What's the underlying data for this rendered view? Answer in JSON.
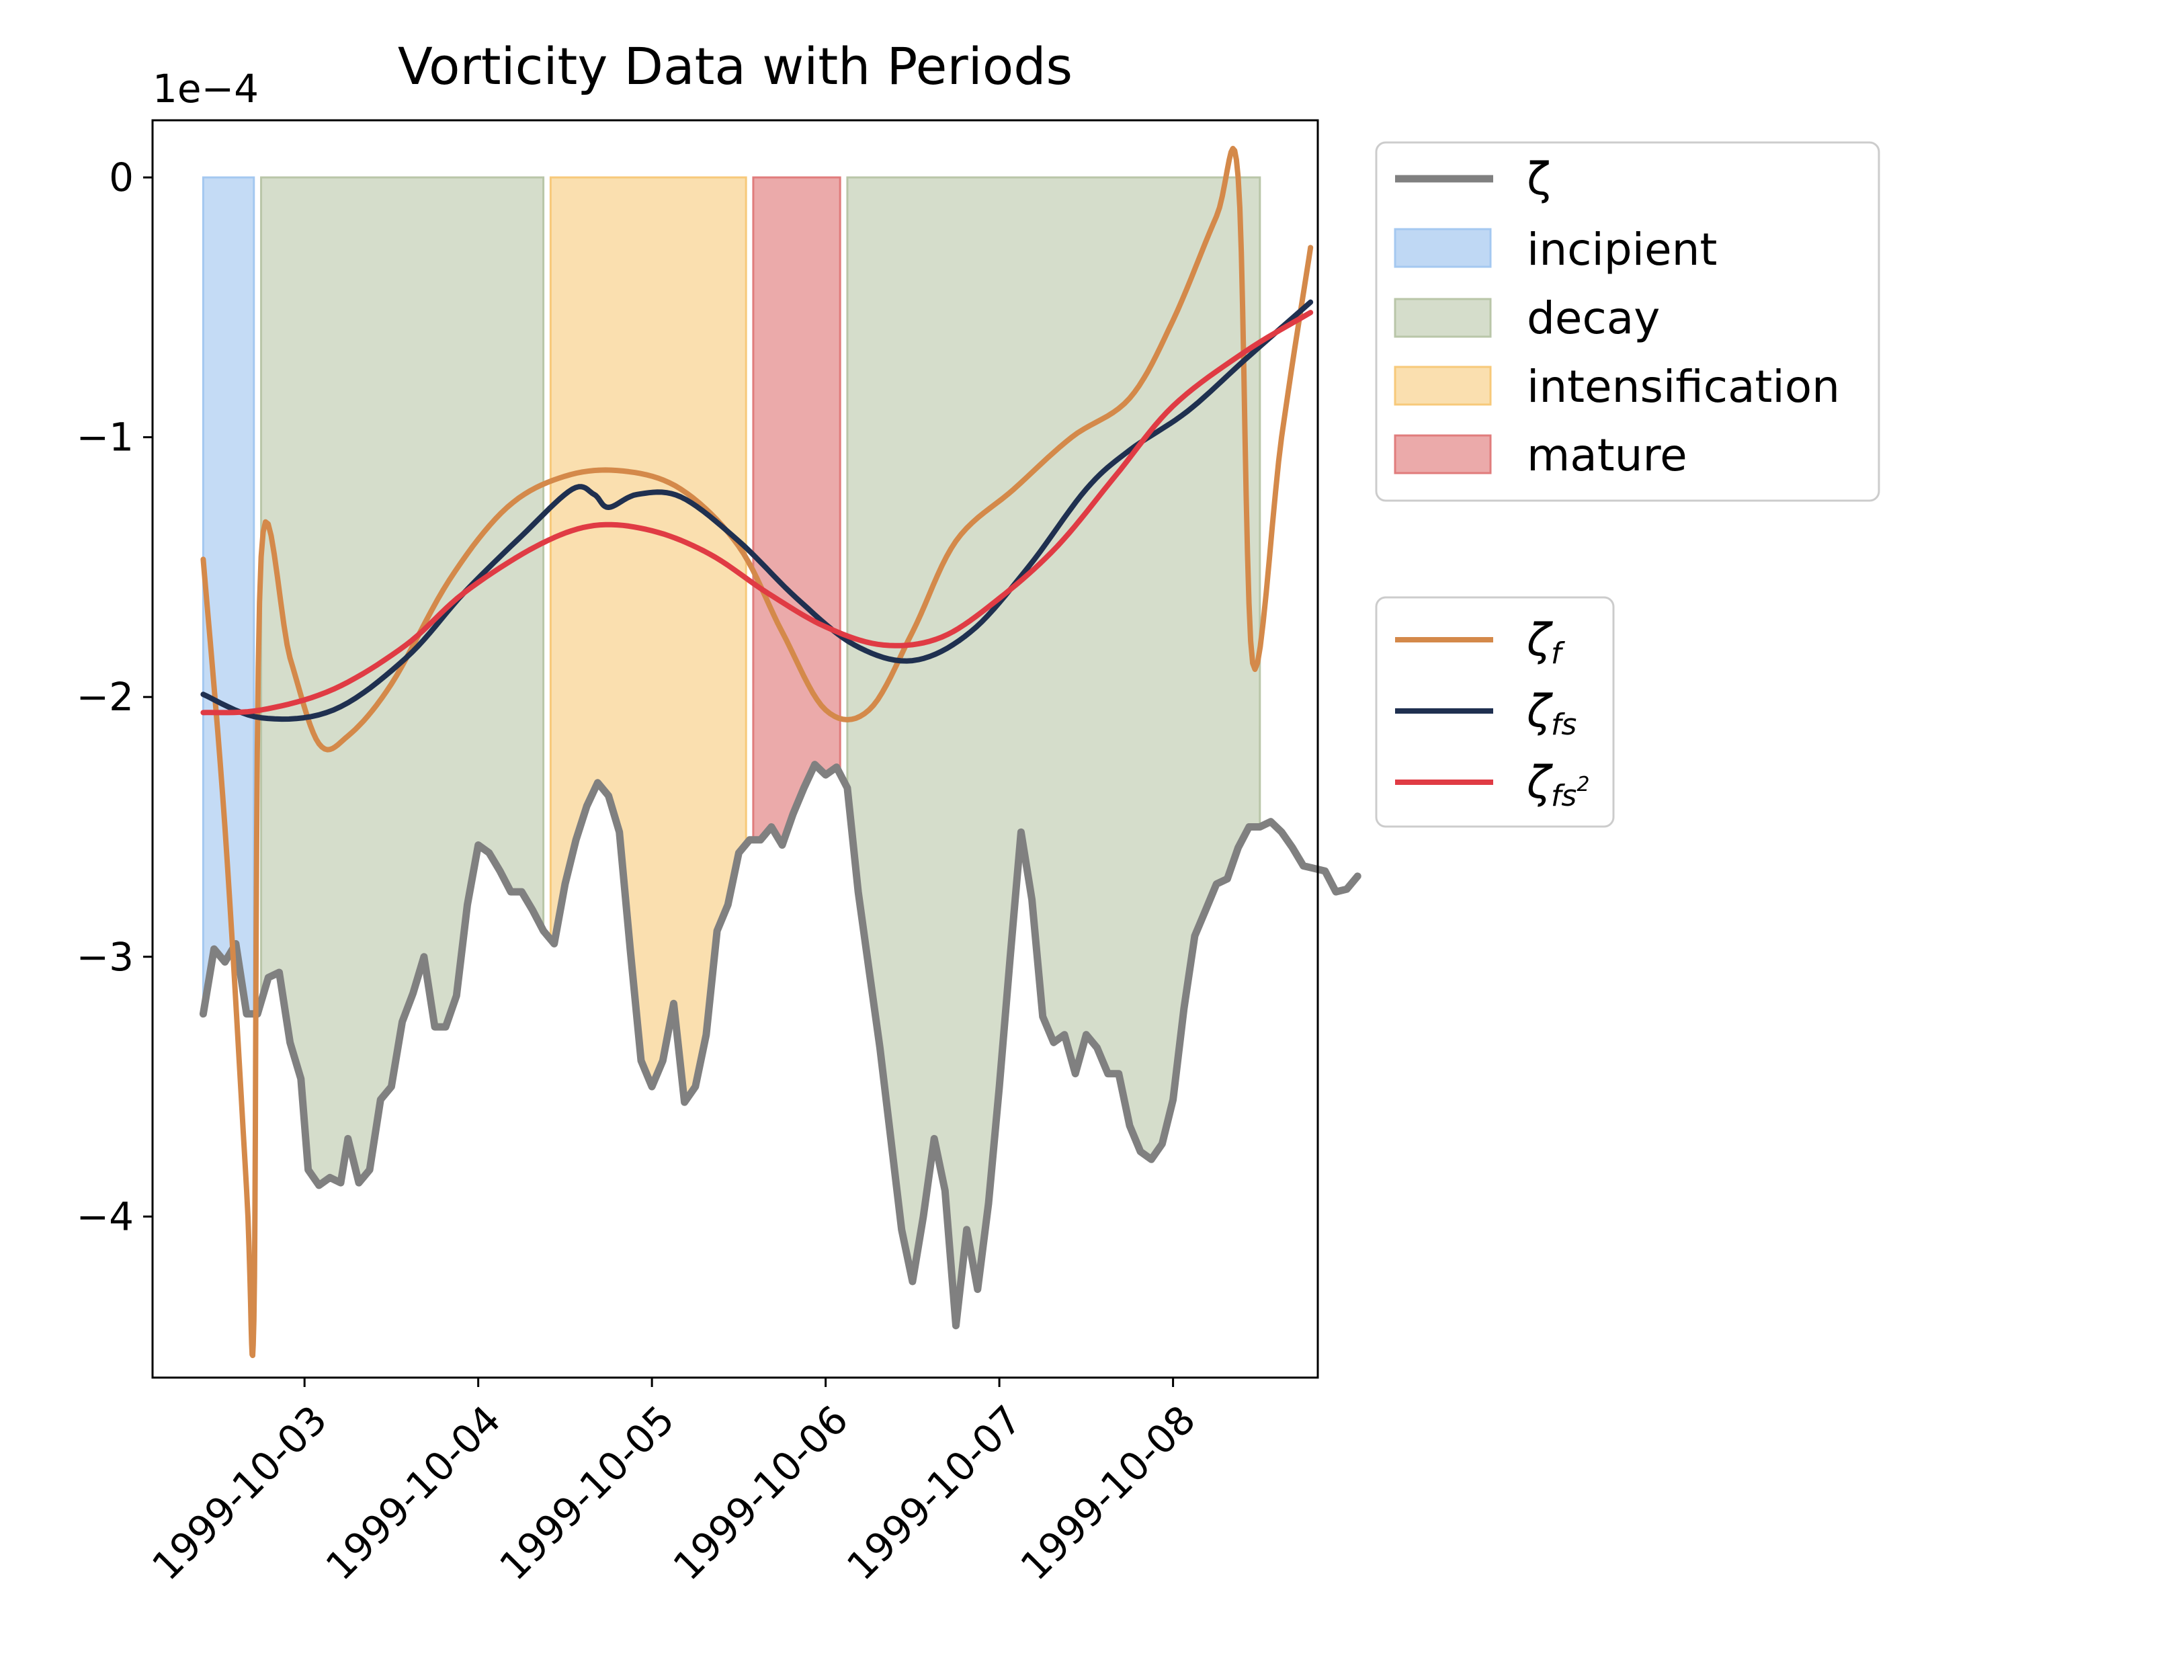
{
  "chart_data": {
    "type": "line",
    "title": "Vorticity Data with Periods",
    "xlabel": "",
    "ylabel": "",
    "y_scale_label": "1e−4",
    "y_scale_factor": 0.0001,
    "xlim": [
      "1999-10-02T03:00",
      "1999-10-08T20:00"
    ],
    "ylim": [
      -4.62,
      0.22
    ],
    "x_ticks": [
      "1999-10-03",
      "1999-10-04",
      "1999-10-05",
      "1999-10-06",
      "1999-10-07",
      "1999-10-08"
    ],
    "y_ticks": [
      0,
      -1,
      -2,
      -3,
      -4
    ],
    "y_tick_labels": [
      "0",
      "−1",
      "−2",
      "−3",
      "−4"
    ],
    "grid": false,
    "periods": [
      {
        "name": "incipient",
        "color": "#a4c8f0",
        "start": "1999-10-02T10:00",
        "end": "1999-10-02T17:00"
      },
      {
        "name": "decay",
        "color": "#b9c6a8",
        "start": "1999-10-02T18:00",
        "end": "1999-10-04T09:00"
      },
      {
        "name": "intensification",
        "color": "#f7c97a",
        "start": "1999-10-04T10:00",
        "end": "1999-10-05T13:00"
      },
      {
        "name": "mature",
        "color": "#e07c7c",
        "start": "1999-10-05T14:00",
        "end": "1999-10-06T02:00"
      },
      {
        "name": "decay",
        "color": "#b9c6a8",
        "start": "1999-10-06T03:00",
        "end": "1999-10-08T12:00"
      }
    ],
    "series": [
      {
        "name": "ζ",
        "color": "#808080",
        "points": [
          [
            "1999-10-02T10:00",
            -3.22
          ],
          [
            "1999-10-02T11:30",
            -2.97
          ],
          [
            "1999-10-02T13:00",
            -3.02
          ],
          [
            "1999-10-02T14:30",
            -2.95
          ],
          [
            "1999-10-02T16:00",
            -3.22
          ],
          [
            "1999-10-02T17:30",
            -3.22
          ],
          [
            "1999-10-02T19:00",
            -3.08
          ],
          [
            "1999-10-02T20:30",
            -3.06
          ],
          [
            "1999-10-02T22:00",
            -3.33
          ],
          [
            "1999-10-02T23:30",
            -3.47
          ],
          [
            "1999-10-03T00:30",
            -3.82
          ],
          [
            "1999-10-03T02:00",
            -3.88
          ],
          [
            "1999-10-03T03:30",
            -3.85
          ],
          [
            "1999-10-03T05:00",
            -3.87
          ],
          [
            "1999-10-03T06:00",
            -3.7
          ],
          [
            "1999-10-03T07:30",
            -3.87
          ],
          [
            "1999-10-03T09:00",
            -3.82
          ],
          [
            "1999-10-03T10:30",
            -3.55
          ],
          [
            "1999-10-03T12:00",
            -3.5
          ],
          [
            "1999-10-03T13:30",
            -3.25
          ],
          [
            "1999-10-03T15:00",
            -3.14
          ],
          [
            "1999-10-03T16:30",
            -3.0
          ],
          [
            "1999-10-03T18:00",
            -3.27
          ],
          [
            "1999-10-03T19:30",
            -3.27
          ],
          [
            "1999-10-03T21:00",
            -3.15
          ],
          [
            "1999-10-03T22:30",
            -2.8
          ],
          [
            "1999-10-04T00:00",
            -2.57
          ],
          [
            "1999-10-04T01:30",
            -2.6
          ],
          [
            "1999-10-04T03:00",
            -2.67
          ],
          [
            "1999-10-04T04:30",
            -2.75
          ],
          [
            "1999-10-04T06:00",
            -2.75
          ],
          [
            "1999-10-04T07:30",
            -2.82
          ],
          [
            "1999-10-04T09:00",
            -2.9
          ],
          [
            "1999-10-04T10:30",
            -2.95
          ],
          [
            "1999-10-04T12:00",
            -2.72
          ],
          [
            "1999-10-04T13:30",
            -2.55
          ],
          [
            "1999-10-04T15:00",
            -2.42
          ],
          [
            "1999-10-04T16:30",
            -2.33
          ],
          [
            "1999-10-04T18:00",
            -2.38
          ],
          [
            "1999-10-04T19:30",
            -2.52
          ],
          [
            "1999-10-04T21:00",
            -2.97
          ],
          [
            "1999-10-04T22:30",
            -3.4
          ],
          [
            "1999-10-05T00:00",
            -3.5
          ],
          [
            "1999-10-05T01:30",
            -3.4
          ],
          [
            "1999-10-05T03:00",
            -3.18
          ],
          [
            "1999-10-05T04:30",
            -3.56
          ],
          [
            "1999-10-05T06:00",
            -3.5
          ],
          [
            "1999-10-05T07:30",
            -3.3
          ],
          [
            "1999-10-05T09:00",
            -2.9
          ],
          [
            "1999-10-05T10:30",
            -2.8
          ],
          [
            "1999-10-05T12:00",
            -2.6
          ],
          [
            "1999-10-05T13:30",
            -2.55
          ],
          [
            "1999-10-05T15:00",
            -2.55
          ],
          [
            "1999-10-05T16:30",
            -2.5
          ],
          [
            "1999-10-05T18:00",
            -2.57
          ],
          [
            "1999-10-05T19:30",
            -2.45
          ],
          [
            "1999-10-05T21:00",
            -2.35
          ],
          [
            "1999-10-05T22:30",
            -2.26
          ],
          [
            "1999-10-06T00:00",
            -2.3
          ],
          [
            "1999-10-06T01:30",
            -2.27
          ],
          [
            "1999-10-06T03:00",
            -2.35
          ],
          [
            "1999-10-06T04:30",
            -2.75
          ],
          [
            "1999-10-06T06:00",
            -3.05
          ],
          [
            "1999-10-06T07:30",
            -3.35
          ],
          [
            "1999-10-06T09:00",
            -3.7
          ],
          [
            "1999-10-06T10:30",
            -4.05
          ],
          [
            "1999-10-06T12:00",
            -4.25
          ],
          [
            "1999-10-06T13:30",
            -4.0
          ],
          [
            "1999-10-06T15:00",
            -3.7
          ],
          [
            "1999-10-06T16:30",
            -3.9
          ],
          [
            "1999-10-06T18:00",
            -4.42
          ],
          [
            "1999-10-06T19:30",
            -4.05
          ],
          [
            "1999-10-06T21:00",
            -4.28
          ],
          [
            "1999-10-06T22:30",
            -3.95
          ],
          [
            "1999-10-07T00:00",
            -3.5
          ],
          [
            "1999-10-07T01:30",
            -3.0
          ],
          [
            "1999-10-07T03:00",
            -2.52
          ],
          [
            "1999-10-07T04:30",
            -2.78
          ],
          [
            "1999-10-07T06:00",
            -3.23
          ],
          [
            "1999-10-07T07:30",
            -3.33
          ],
          [
            "1999-10-07T09:00",
            -3.3
          ],
          [
            "1999-10-07T10:30",
            -3.45
          ],
          [
            "1999-10-07T12:00",
            -3.3
          ],
          [
            "1999-10-07T13:30",
            -3.35
          ],
          [
            "1999-10-07T15:00",
            -3.45
          ],
          [
            "1999-10-07T16:30",
            -3.45
          ],
          [
            "1999-10-07T18:00",
            -3.65
          ],
          [
            "1999-10-07T19:30",
            -3.75
          ],
          [
            "1999-10-07T21:00",
            -3.78
          ],
          [
            "1999-10-07T22:30",
            -3.72
          ],
          [
            "1999-10-08T00:00",
            -3.55
          ],
          [
            "1999-10-08T01:30",
            -3.2
          ],
          [
            "1999-10-08T03:00",
            -2.92
          ],
          [
            "1999-10-08T04:30",
            -2.82
          ],
          [
            "1999-10-08T06:00",
            -2.72
          ],
          [
            "1999-10-08T07:30",
            -2.7
          ],
          [
            "1999-10-08T09:00",
            -2.58
          ],
          [
            "1999-10-08T10:30",
            -2.5
          ],
          [
            "1999-10-08T12:00",
            -2.5
          ],
          [
            "1999-10-08T13:30",
            -2.48
          ],
          [
            "1999-10-08T15:00",
            -2.52
          ],
          [
            "1999-10-08T16:30",
            -2.58
          ],
          [
            "1999-10-08T18:00",
            -2.65
          ],
          [
            "1999-10-08T19:30",
            -2.66
          ],
          [
            "1999-10-08T21:00",
            -2.67
          ],
          [
            "1999-10-08T22:30",
            -2.75
          ],
          [
            "1999-10-09T00:00",
            -2.74
          ],
          [
            "1999-10-09T01:30",
            -2.69
          ]
        ]
      },
      {
        "name": "ζ_f",
        "color": "#d4894a",
        "points": []
      },
      {
        "name": "ζ_fs",
        "color": "#1f3050",
        "points": []
      },
      {
        "name": "ζ_fs²",
        "color": "#e03b44",
        "points": []
      }
    ]
  }
}
